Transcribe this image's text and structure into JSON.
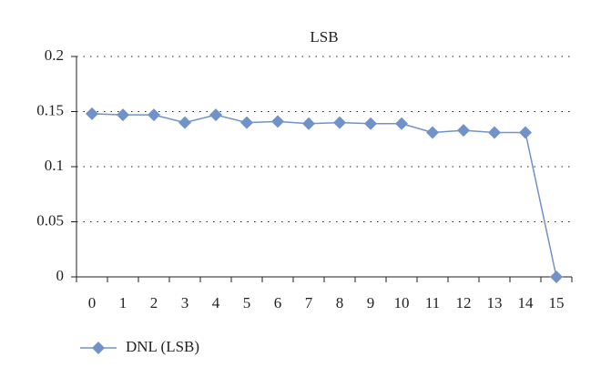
{
  "chart_data": {
    "type": "line",
    "title": "LSB",
    "categories": [
      "0",
      "1",
      "2",
      "3",
      "4",
      "5",
      "6",
      "7",
      "8",
      "9",
      "10",
      "11",
      "12",
      "13",
      "14",
      "15"
    ],
    "series": [
      {
        "name": "DNL (LSB)",
        "color": "#7092c9",
        "values": [
          0.148,
          0.147,
          0.147,
          0.14,
          0.147,
          0.14,
          0.141,
          0.139,
          0.14,
          0.139,
          0.139,
          0.131,
          0.133,
          0.131,
          0.131,
          0
        ]
      }
    ],
    "ylim": [
      0,
      0.2
    ],
    "yticks": [
      0,
      0.05,
      0.1,
      0.15,
      0.2
    ],
    "grid": true,
    "legend": "bottom-left"
  }
}
